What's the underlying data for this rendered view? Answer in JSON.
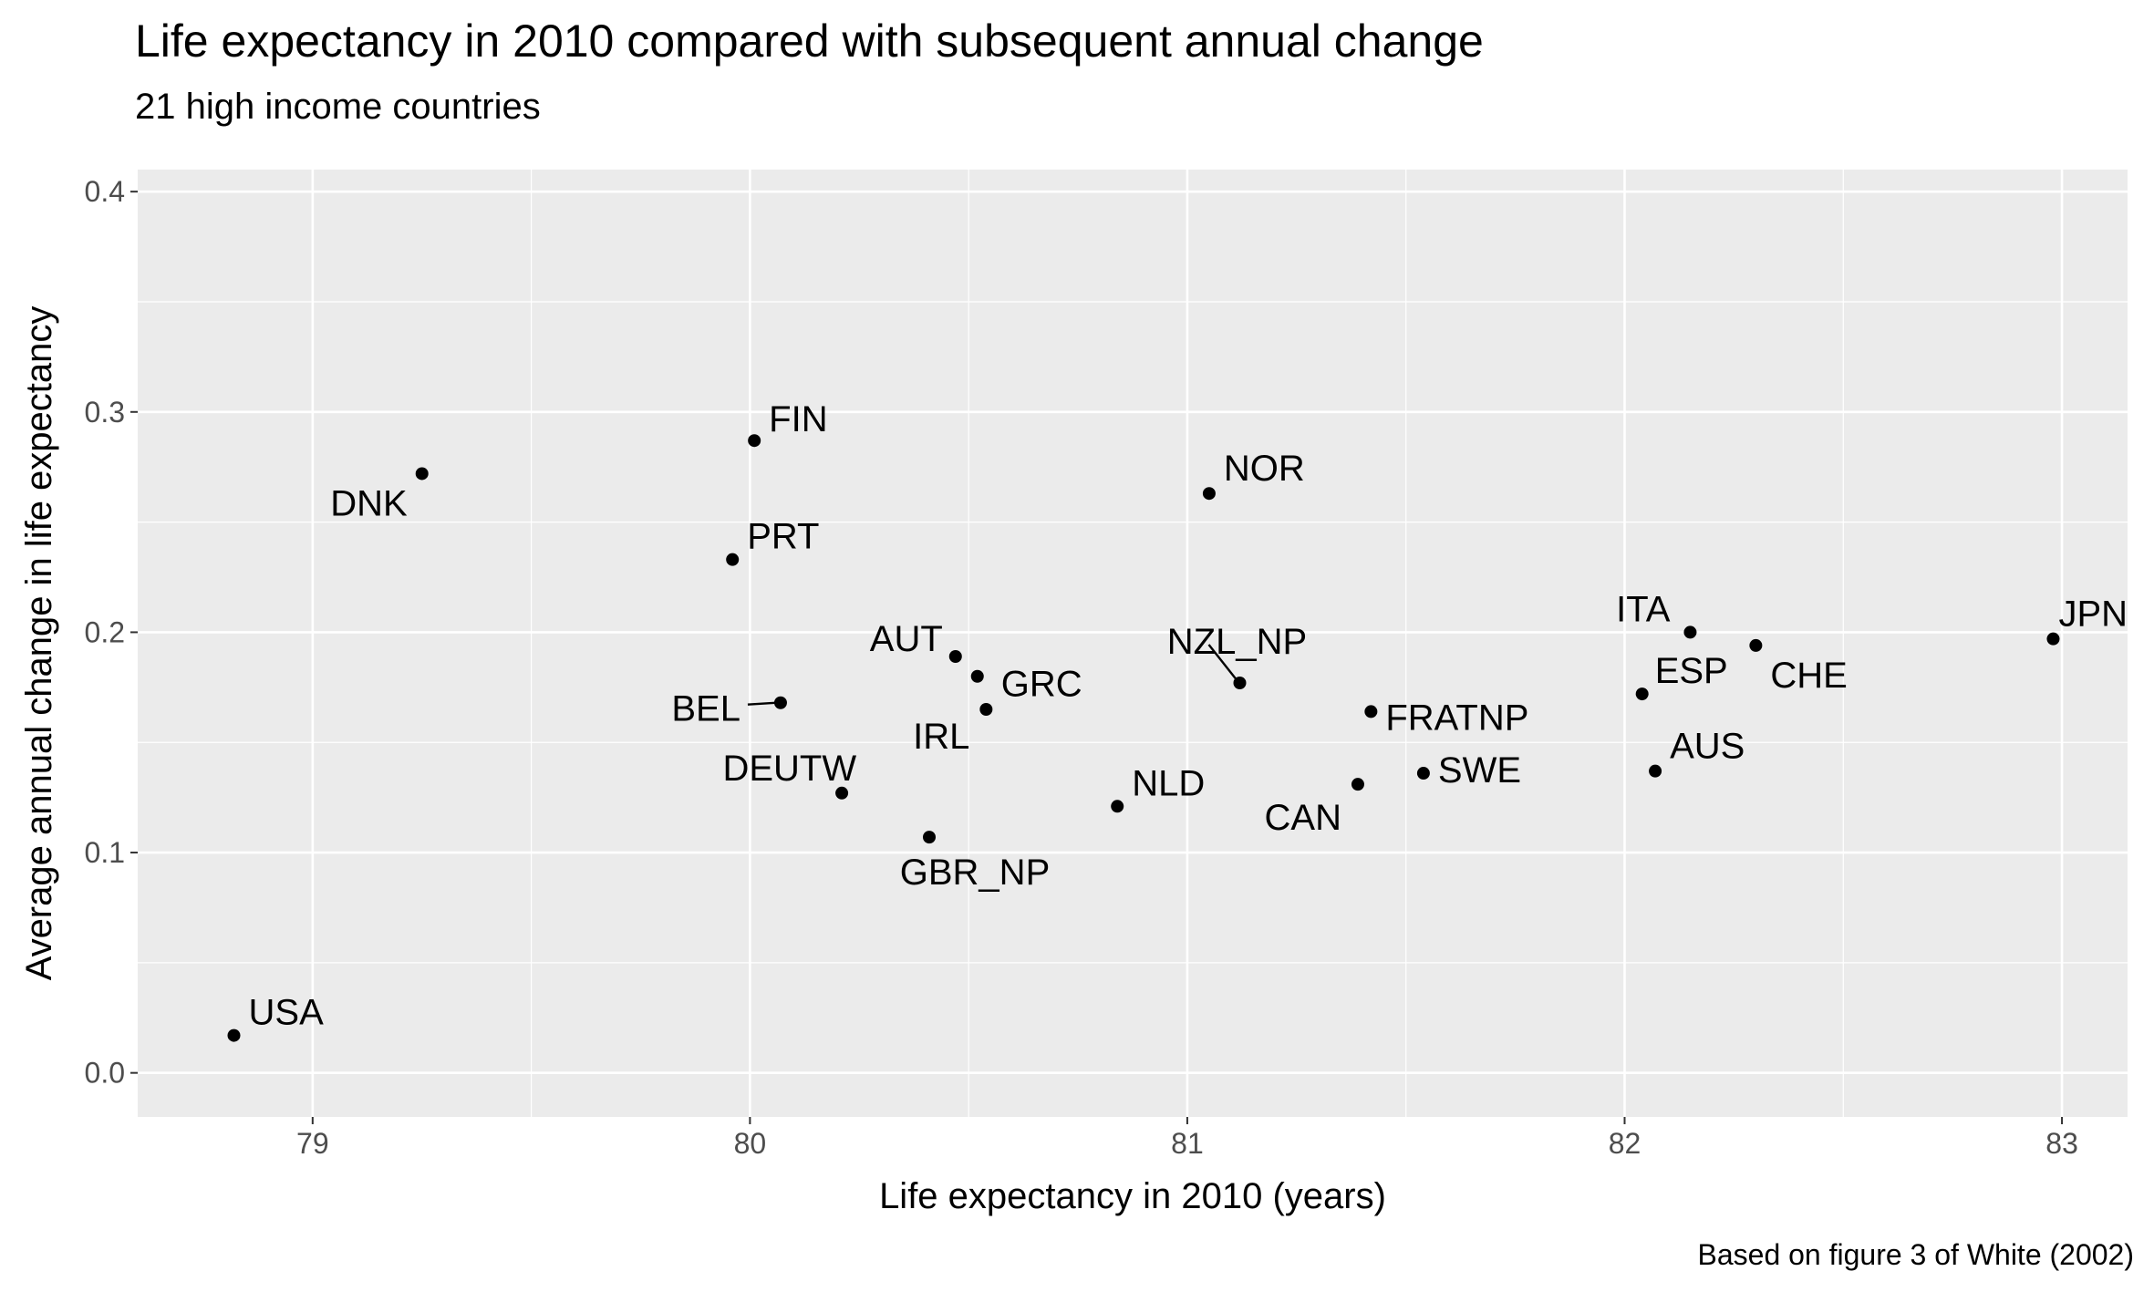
{
  "chart_data": {
    "type": "scatter",
    "title": "Life expectancy in 2010 compared with subsequent annual change",
    "subtitle": "21 high income countries",
    "xlabel": "Life expectancy in 2010 (years)",
    "ylabel": "Average annual change in life expectancy",
    "caption": "Based on figure 3 of White (2002)",
    "xlim": [
      78.6,
      83.15
    ],
    "ylim": [
      -0.02,
      0.41
    ],
    "x_ticks": [
      79,
      80,
      81,
      82,
      83
    ],
    "x_tick_labels": [
      "79",
      "80",
      "81",
      "82",
      "83"
    ],
    "y_ticks": [
      0.0,
      0.1,
      0.2,
      0.3,
      0.4
    ],
    "y_tick_labels": [
      "0.0",
      "0.1",
      "0.2",
      "0.3",
      "0.4"
    ],
    "grid": true,
    "colors": {
      "panel_background": "#ebebeb",
      "grid_major": "#ffffff",
      "point": "#000000",
      "tick_text": "#4d4d4d"
    },
    "points": [
      {
        "label": "USA",
        "x": 78.82,
        "y": 0.017
      },
      {
        "label": "DNK",
        "x": 79.25,
        "y": 0.272
      },
      {
        "label": "FIN",
        "x": 80.01,
        "y": 0.287
      },
      {
        "label": "PRT",
        "x": 79.96,
        "y": 0.233
      },
      {
        "label": "BEL",
        "x": 80.07,
        "y": 0.168
      },
      {
        "label": "DEUTW",
        "x": 80.21,
        "y": 0.127
      },
      {
        "label": "GBR_NP",
        "x": 80.41,
        "y": 0.107
      },
      {
        "label": "AUT",
        "x": 80.47,
        "y": 0.189
      },
      {
        "label": "GRC",
        "x": 80.52,
        "y": 0.18
      },
      {
        "label": "IRL",
        "x": 80.54,
        "y": 0.165
      },
      {
        "label": "NLD",
        "x": 80.84,
        "y": 0.121
      },
      {
        "label": "NOR",
        "x": 81.05,
        "y": 0.263
      },
      {
        "label": "NZL_NP",
        "x": 81.12,
        "y": 0.177
      },
      {
        "label": "FRATNP",
        "x": 81.42,
        "y": 0.164
      },
      {
        "label": "CAN",
        "x": 81.39,
        "y": 0.131
      },
      {
        "label": "SWE",
        "x": 81.54,
        "y": 0.136
      },
      {
        "label": "ITA",
        "x": 82.15,
        "y": 0.2
      },
      {
        "label": "ESP",
        "x": 82.04,
        "y": 0.172
      },
      {
        "label": "CHE",
        "x": 82.3,
        "y": 0.194
      },
      {
        "label": "AUS",
        "x": 82.07,
        "y": 0.137
      },
      {
        "label": "JPN",
        "x": 82.98,
        "y": 0.197
      }
    ]
  }
}
